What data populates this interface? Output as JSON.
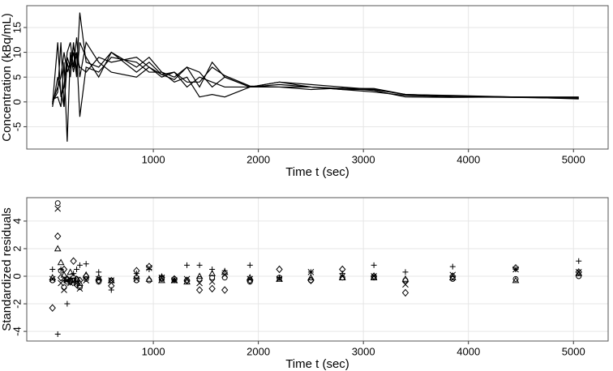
{
  "chart_data": [
    {
      "type": "line",
      "xlabel": "Time t (sec)",
      "ylabel": "Concentration (kBq/mL)",
      "x": [
        40,
        90,
        120,
        150,
        180,
        210,
        240,
        270,
        300,
        360,
        480,
        600,
        840,
        960,
        1080,
        1200,
        1320,
        1440,
        1560,
        1680,
        1920,
        2200,
        2500,
        2800,
        3100,
        3400,
        3850,
        4450,
        5050
      ],
      "series": [
        {
          "color": "#000000",
          "values": [
            0,
            2,
            12,
            -1,
            8,
            5,
            12,
            6,
            18,
            8,
            7,
            10,
            7,
            9,
            6,
            5,
            7,
            3,
            8,
            5,
            3,
            4,
            3,
            2.5,
            2.5,
            1.5,
            1.2,
            1,
            1
          ]
        },
        {
          "color": "#000000",
          "values": [
            -0.5,
            12,
            1,
            3,
            10,
            12,
            7,
            13,
            5,
            12,
            8,
            6,
            5,
            7,
            5,
            6,
            3,
            5,
            4,
            3,
            3,
            3,
            3,
            2.5,
            2,
            1.3,
            1,
            0.9,
            0.8
          ]
        },
        {
          "color": "#000000",
          "values": [
            0.5,
            1,
            -1,
            8,
            -8,
            10,
            6,
            10,
            -3,
            7,
            6,
            9,
            8,
            6,
            6,
            4,
            5,
            1,
            1.5,
            1,
            3,
            3.5,
            3,
            2.7,
            2.7,
            1.5,
            1.2,
            0.9,
            0.7
          ]
        },
        {
          "color": "#000000",
          "values": [
            0,
            3,
            5,
            10,
            6,
            8,
            11,
            9,
            7,
            6,
            9,
            8,
            9,
            7,
            5.5,
            4.5,
            7,
            6,
            3,
            5,
            3,
            4,
            3.5,
            3,
            2.5,
            1.5,
            1.3,
            1,
            0.9
          ]
        },
        {
          "color": "#000000",
          "values": [
            -1,
            5,
            2,
            -1,
            9,
            7,
            10,
            5,
            12,
            9,
            5,
            10,
            6,
            8,
            5.5,
            6,
            4,
            4,
            7,
            5.3,
            3.2,
            3,
            2.5,
            2.8,
            2.3,
            1,
            0.9,
            1,
            0.6
          ]
        }
      ],
      "xlim": [
        -205,
        5330
      ],
      "ylim": [
        -9.5,
        19.4
      ],
      "xticks": [
        1000,
        2000,
        3000,
        4000,
        5000
      ],
      "yticks": [
        -5,
        0,
        5,
        10,
        15
      ],
      "grid": true
    },
    {
      "type": "scatter",
      "xlabel": "Time t (sec)",
      "ylabel": "Standardized residuals",
      "x": [
        40,
        90,
        120,
        150,
        180,
        210,
        240,
        270,
        300,
        360,
        480,
        600,
        840,
        960,
        1080,
        1200,
        1320,
        1440,
        1560,
        1680,
        1920,
        2200,
        2500,
        2800,
        3100,
        3400,
        3850,
        4450,
        5050
      ],
      "series": [
        {
          "color": "#000000",
          "marker": "plus",
          "values": [
            0.5,
            -4.2,
            0.5,
            -0.3,
            -2,
            -0.2,
            0.2,
            0.5,
            0.8,
            0.9,
            0.3,
            -1,
            0.2,
            0.5,
            0,
            -0.3,
            0.8,
            0.8,
            0.5,
            0.4,
            0.8,
            -0.1,
            0.3,
            0.2,
            0.8,
            0.3,
            0.7,
            0.5,
            1.1
          ]
        },
        {
          "color": "#000000",
          "marker": "cross",
          "values": [
            -0.2,
            4.9,
            -0.5,
            -1,
            -0.3,
            -0.5,
            -0.4,
            -0.5,
            -0.9,
            -0.3,
            -0.2,
            -0.3,
            -0.2,
            0.6,
            -0.1,
            -0.3,
            -0.2,
            -0.5,
            -0.4,
            0.1,
            -0.2,
            -0.2,
            0.3,
            0,
            0,
            -0.6,
            0.1,
            0.5,
            0.3
          ]
        },
        {
          "color": "#000000",
          "marker": "diamond",
          "values": [
            -2.3,
            2.9,
            -0.1,
            0.5,
            -0.2,
            -0.4,
            1.1,
            -0.6,
            -0.3,
            0,
            -0.3,
            -0.7,
            0.4,
            0.7,
            -0.1,
            -0.2,
            -0.3,
            -1,
            -0.9,
            -1,
            -0.3,
            0.5,
            -0.3,
            0.5,
            0,
            -1.2,
            0,
            0.6,
            0.3
          ]
        },
        {
          "color": "#000000",
          "marker": "triangle",
          "values": [
            -0.1,
            2,
            1,
            0.1,
            -0.2,
            0.3,
            0,
            -0.2,
            -0.5,
            0.1,
            -0.1,
            -0.3,
            0,
            -0.2,
            -0.3,
            -0.3,
            -0.4,
            0,
            0.2,
            0.3,
            -0.1,
            -0.2,
            -0.1,
            -0.1,
            -0.1,
            -0.2,
            -0.1,
            -0.3,
            0.2
          ]
        },
        {
          "color": "#000000",
          "marker": "circle",
          "values": [
            -0.3,
            5.3,
            0.4,
            -0.8,
            -0.4,
            -0.3,
            -0.3,
            -0.2,
            -0.8,
            -0.2,
            -0.4,
            -0.3,
            -0.3,
            -0.3,
            -0.2,
            -0.2,
            -0.3,
            -0.2,
            -0.1,
            -0.1,
            -0.4,
            -0.1,
            -0.3,
            -0.1,
            -0.1,
            -0.3,
            -0.2,
            -0.2,
            0
          ]
        }
      ],
      "xlim": [
        -205,
        5330
      ],
      "ylim": [
        -4.7,
        5.7
      ],
      "xticks": [
        1000,
        2000,
        3000,
        4000,
        5000
      ],
      "yticks": [
        -4,
        -2,
        0,
        2,
        4
      ],
      "grid": true
    }
  ]
}
